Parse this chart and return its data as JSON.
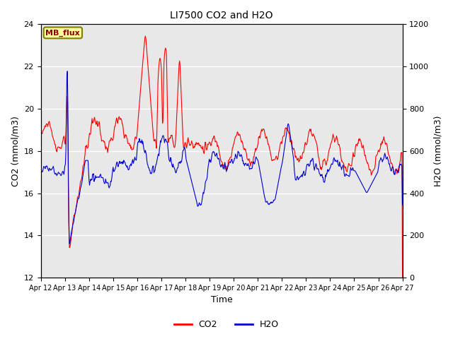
{
  "title": "LI7500 CO2 and H2O",
  "xlabel": "Time",
  "ylabel_left": "CO2 (mmol/m3)",
  "ylabel_right": "H2O (mmol/m3)",
  "ylim_left": [
    12,
    24
  ],
  "ylim_right": [
    0,
    1200
  ],
  "yticks_left": [
    12,
    14,
    16,
    18,
    20,
    22,
    24
  ],
  "yticks_right": [
    0,
    200,
    400,
    600,
    800,
    1000,
    1200
  ],
  "xtick_labels": [
    "Apr 12",
    "Apr 13",
    "Apr 14",
    "Apr 15",
    "Apr 16",
    "Apr 17",
    "Apr 18",
    "Apr 19",
    "Apr 20",
    "Apr 21",
    "Apr 22",
    "Apr 23",
    "Apr 24",
    "Apr 25",
    "Apr 26",
    "Apr 27"
  ],
  "co2_color": "#FF0000",
  "h2o_color": "#0000CC",
  "legend_label_co2": "CO2",
  "legend_label_h2o": "H2O",
  "annotation_text": "MB_flux",
  "bg_color": "#E8E8E8",
  "fig_bg_color": "#FFFFFF",
  "linewidth": 0.8,
  "title_fontsize": 10,
  "label_fontsize": 9,
  "tick_fontsize": 8
}
